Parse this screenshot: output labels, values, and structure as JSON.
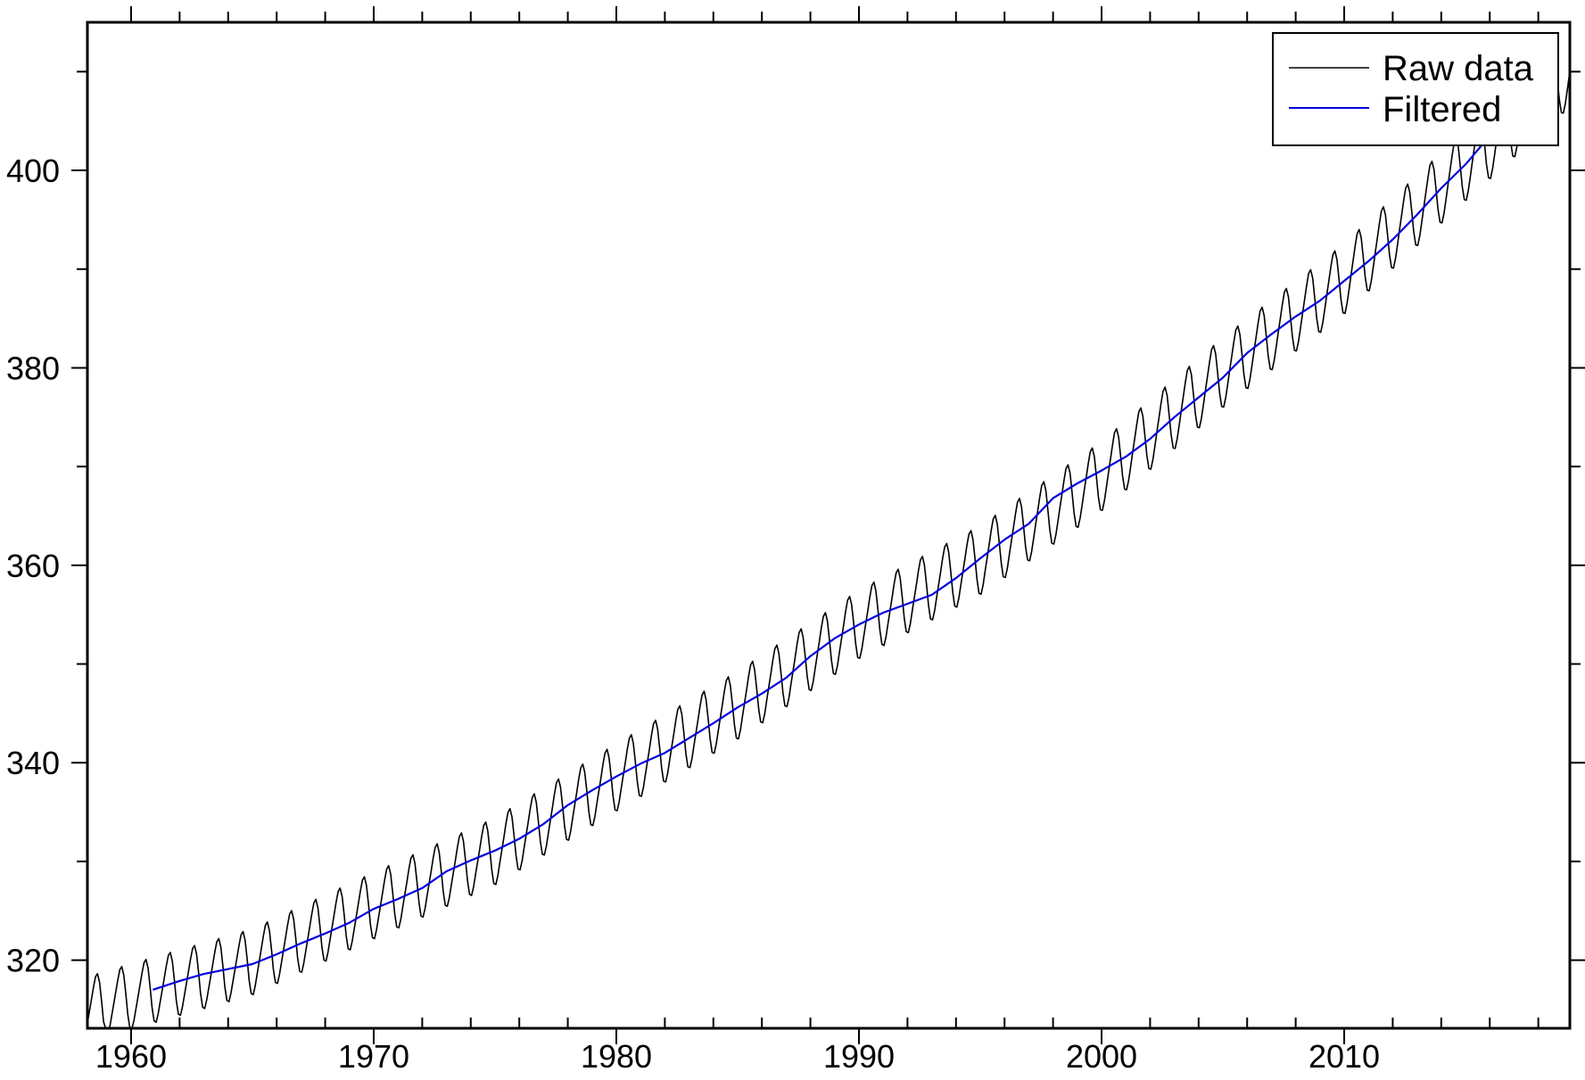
{
  "chart_data": {
    "type": "line",
    "title": "",
    "xlabel": "",
    "ylabel": "",
    "xlim": [
      1958.2,
      2019.3
    ],
    "ylim": [
      313.1,
      415.0
    ],
    "x_ticks": [
      1960,
      1970,
      1980,
      1990,
      2000,
      2010
    ],
    "x_tick_labels": [
      "1960",
      "1970",
      "1980",
      "1990",
      "2000",
      "2010"
    ],
    "y_ticks": [
      320,
      340,
      360,
      380,
      400
    ],
    "y_tick_labels": [
      "320",
      "340",
      "360",
      "380",
      "400"
    ],
    "x_minor_step": 2,
    "y_minor_step": 10,
    "grid": false,
    "legend_position": "top-right",
    "legend": [
      {
        "label": "Raw data",
        "color": "#000000"
      },
      {
        "label": "Filtered",
        "color": "#0000dd"
      }
    ],
    "series": [
      {
        "name": "Raw data",
        "color": "#000000",
        "style": "monthly seasonal cycle around a rising trend",
        "x_start": 1958.2,
        "x_end": 2019.3,
        "seasonal_amplitude": 3.2,
        "trend_anchors": {
          "x": [
            1958.2,
            1961.0,
            1965.0,
            1970.0,
            1975.0,
            1980.0,
            1985.0,
            1990.0,
            1995.0,
            2000.0,
            2005.0,
            2010.0,
            2015.0,
            2019.3
          ],
          "y": [
            315.0,
            317.0,
            319.8,
            325.5,
            331.0,
            338.5,
            345.8,
            354.0,
            360.5,
            369.0,
            379.5,
            389.0,
            400.5,
            410.0
          ]
        }
      },
      {
        "name": "Filtered",
        "color": "#0000dd",
        "x": [
          1960.9,
          1962.0,
          1963.0,
          1964.0,
          1965.0,
          1966.0,
          1967.0,
          1968.0,
          1969.0,
          1970.0,
          1971.0,
          1972.0,
          1973.0,
          1974.0,
          1975.0,
          1976.0,
          1977.0,
          1978.0,
          1979.0,
          1980.0,
          1981.0,
          1982.0,
          1983.0,
          1984.0,
          1985.0,
          1986.0,
          1987.0,
          1988.0,
          1989.0,
          1990.0,
          1991.0,
          1992.0,
          1993.0,
          1994.0,
          1995.0,
          1996.0,
          1997.0,
          1998.0,
          1999.0,
          2000.0,
          2001.0,
          2002.0,
          2003.0,
          2004.0,
          2005.0,
          2006.0,
          2007.0,
          2008.0,
          2009.0,
          2010.0,
          2011.0,
          2012.0,
          2013.0,
          2014.0,
          2015.0,
          2016.0
        ],
        "y": [
          317.0,
          317.9,
          318.6,
          319.1,
          319.6,
          320.6,
          321.7,
          322.7,
          323.8,
          325.2,
          326.2,
          327.3,
          329.0,
          330.1,
          331.1,
          332.3,
          333.8,
          335.7,
          337.2,
          338.6,
          339.9,
          341.0,
          342.5,
          344.0,
          345.6,
          347.0,
          348.6,
          350.8,
          352.6,
          354.0,
          355.2,
          356.1,
          357.0,
          358.7,
          360.7,
          362.6,
          364.2,
          366.8,
          368.3,
          369.6,
          371.0,
          372.8,
          375.0,
          377.0,
          379.0,
          381.5,
          383.4,
          385.2,
          386.8,
          388.8,
          390.8,
          393.0,
          395.5,
          398.2,
          400.6,
          403.5
        ]
      }
    ]
  }
}
